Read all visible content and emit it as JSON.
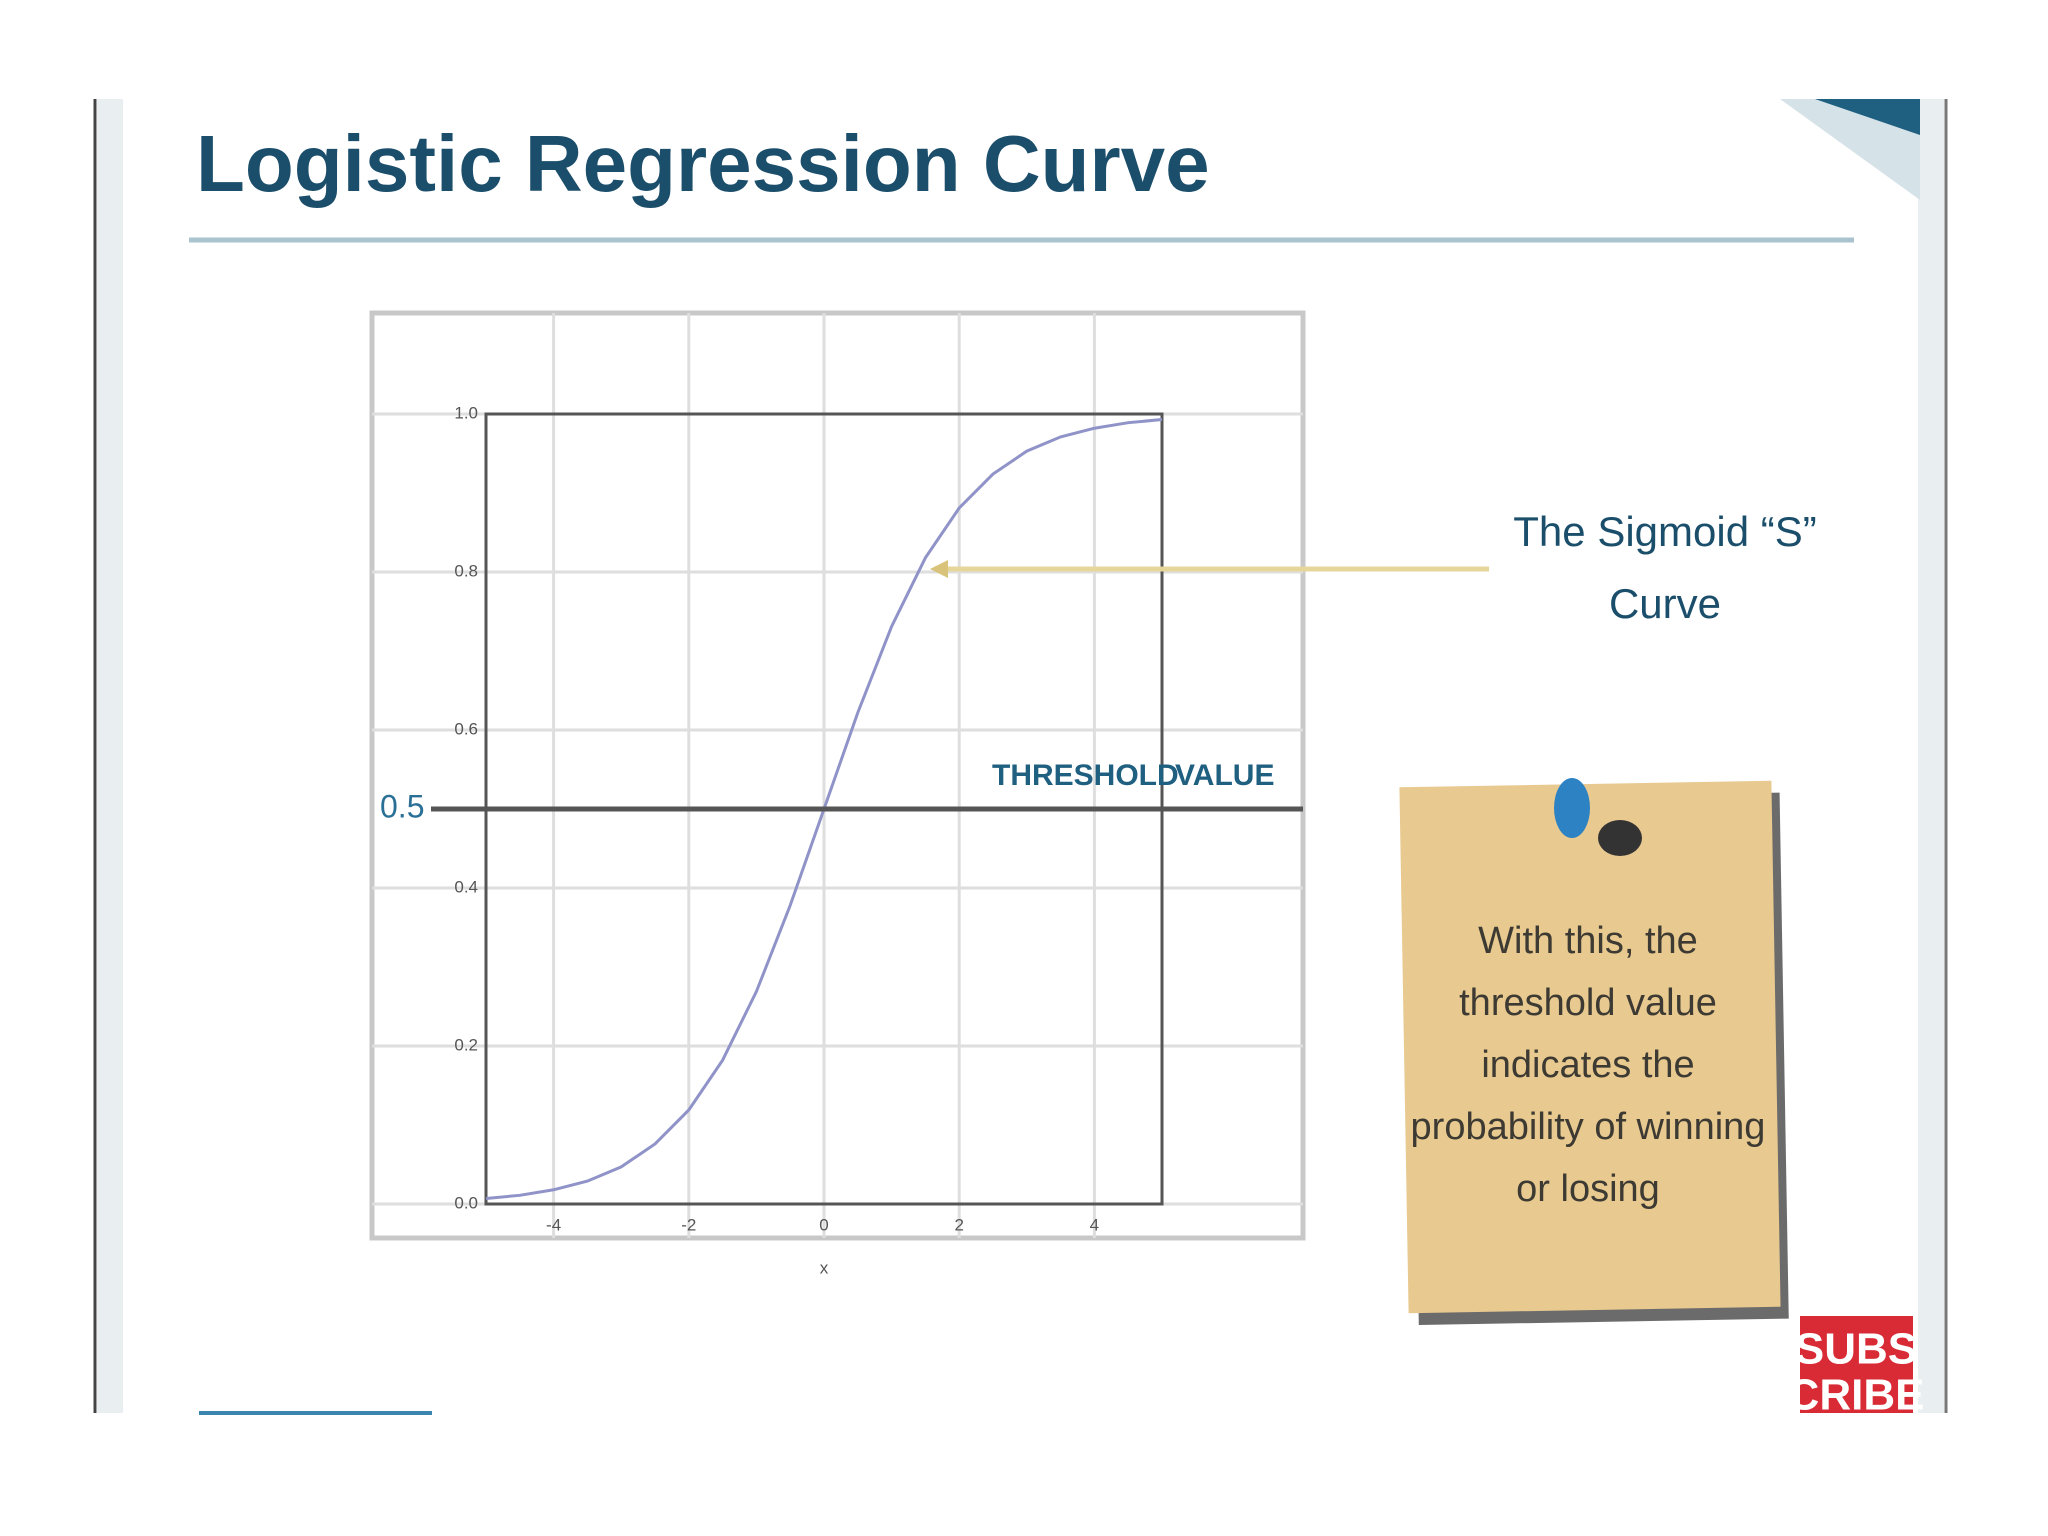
{
  "chart_data": {
    "type": "line",
    "title": "Logistic Regression Curve",
    "x_label": "x",
    "x": [
      -5,
      -4.5,
      -4,
      -3.5,
      -3,
      -2.5,
      -2,
      -1.5,
      -1,
      -0.5,
      0,
      0.5,
      1,
      1.5,
      2,
      2.5,
      3,
      3.5,
      4,
      4.5,
      5
    ],
    "values": [
      0.007,
      0.011,
      0.018,
      0.029,
      0.047,
      0.076,
      0.119,
      0.182,
      0.269,
      0.378,
      0.5,
      0.622,
      0.731,
      0.818,
      0.881,
      0.924,
      0.953,
      0.971,
      0.982,
      0.989,
      0.993
    ],
    "color": "#8f93c8",
    "xlim": [
      -5,
      5
    ],
    "xticks": [
      -4,
      -2,
      0,
      2,
      4
    ],
    "ylim": [
      0,
      1
    ],
    "yticks": [
      {
        "value": 0,
        "label": "0.0"
      },
      0.2,
      0.4,
      0.6,
      0.8,
      {
        "value": 1,
        "label": "1.0"
      }
    ],
    "grid": true,
    "threshold": 0.5,
    "threshold_label": [
      "THRESHOLD",
      "VALUE"
    ],
    "annotation": [
      "The Sigmoid “S”",
      "Curve"
    ]
  },
  "note": {
    "lines": [
      "With this, the",
      "threshold value",
      "indicates the",
      "probability of winning",
      "or losing"
    ]
  },
  "badge": [
    "SUBS",
    "CRIBE"
  ]
}
